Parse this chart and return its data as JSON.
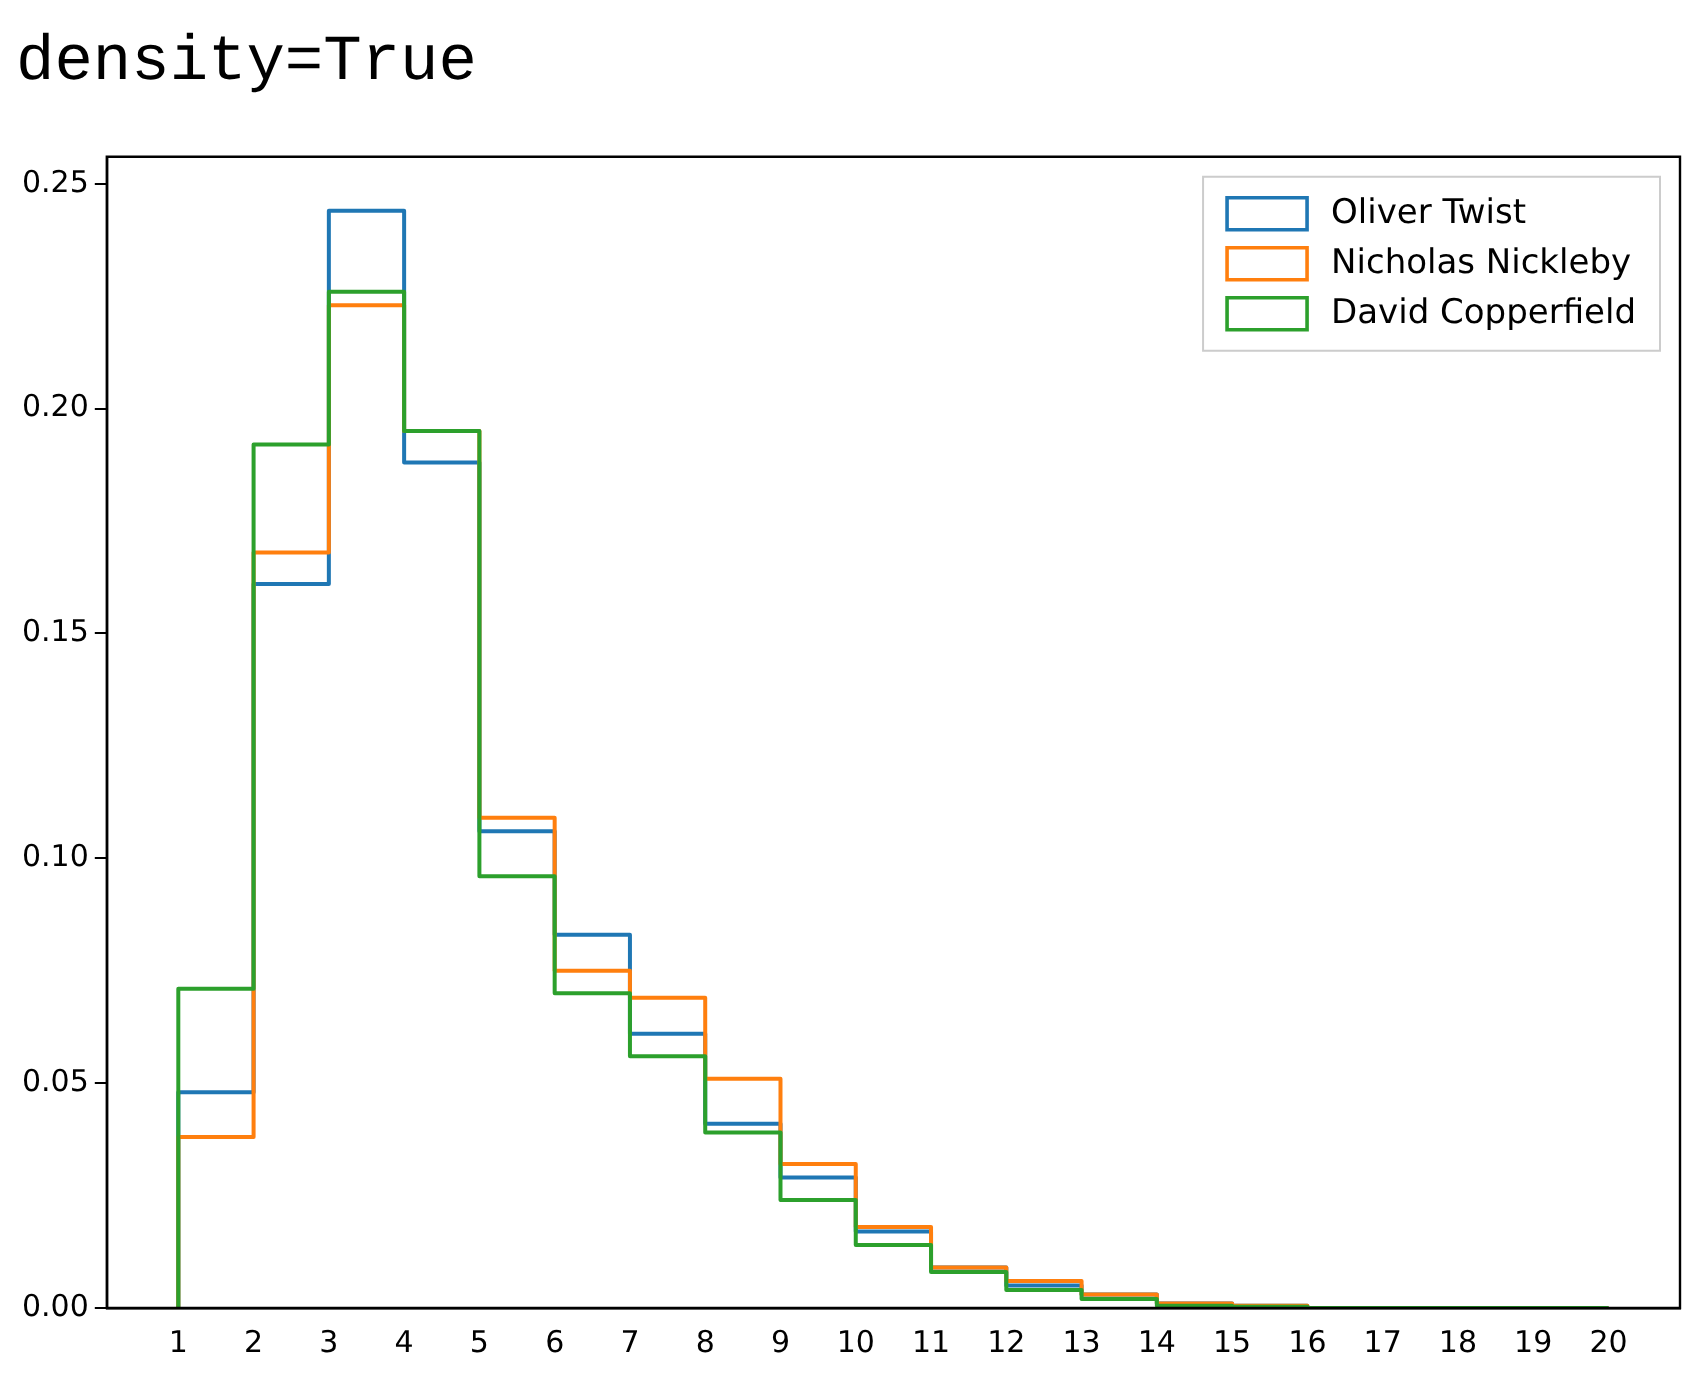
{
  "chart_data": {
    "type": "histogram",
    "title": "density=True",
    "bins": [
      1,
      2,
      3,
      4,
      5,
      6,
      7,
      8,
      9,
      10,
      11,
      12,
      13,
      14,
      15,
      16,
      17,
      18,
      19,
      20
    ],
    "series": [
      {
        "name": "Oliver Twist",
        "color": "#1f77b4",
        "values": [
          0.048,
          0.161,
          0.244,
          0.188,
          0.106,
          0.083,
          0.061,
          0.041,
          0.029,
          0.017,
          0.009,
          0.005,
          0.003,
          0.001,
          0.0005,
          0,
          0,
          0,
          0
        ]
      },
      {
        "name": "Nicholas Nickleby",
        "color": "#ff7f0e",
        "values": [
          0.038,
          0.168,
          0.223,
          0.195,
          0.109,
          0.075,
          0.069,
          0.051,
          0.032,
          0.018,
          0.009,
          0.006,
          0.003,
          0.001,
          0.0005,
          0,
          0,
          0,
          0
        ]
      },
      {
        "name": "David Copperfield",
        "color": "#2ca02c",
        "values": [
          0.071,
          0.192,
          0.226,
          0.195,
          0.096,
          0.07,
          0.056,
          0.039,
          0.024,
          0.014,
          0.008,
          0.004,
          0.002,
          0.0005,
          0.0003,
          0,
          0,
          0,
          0
        ]
      }
    ],
    "xlim": [
      0.05,
      20.95
    ],
    "xticks": [
      1,
      2,
      3,
      4,
      5,
      6,
      7,
      8,
      9,
      10,
      11,
      12,
      13,
      14,
      15,
      16,
      17,
      18,
      19,
      20
    ],
    "ylim": [
      0,
      0.256
    ],
    "yticks": [
      {
        "value": 0,
        "label": "0.00"
      },
      {
        "value": 0.05,
        "label": "0.05"
      },
      {
        "value": 0.1,
        "label": "0.10"
      },
      {
        "value": 0.15,
        "label": "0.15"
      },
      {
        "value": 0.2,
        "label": "0.20"
      },
      {
        "value": 0.25,
        "label": "0.25"
      }
    ],
    "grid": false,
    "legend": "top right"
  }
}
